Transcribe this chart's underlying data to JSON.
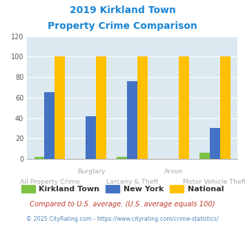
{
  "title_line1": "2019 Kirkland Town",
  "title_line2": "Property Crime Comparison",
  "categories": [
    "All Property Crime",
    "Burglary",
    "Larceny & Theft",
    "Arson",
    "Motor Vehicle Theft"
  ],
  "top_labels": [
    "",
    "Burglary",
    "",
    "Arson",
    ""
  ],
  "bot_labels": [
    "All Property Crime",
    "",
    "Larceny & Theft",
    "",
    "Motor Vehicle Theft"
  ],
  "kirkland": [
    2,
    0,
    2,
    0,
    6
  ],
  "new_york": [
    65,
    42,
    76,
    0,
    30
  ],
  "national": [
    100,
    100,
    100,
    100,
    100
  ],
  "kirkland_color": "#7dc242",
  "new_york_color": "#4472c4",
  "national_color": "#ffc000",
  "bg_color": "#dce9f0",
  "title_color": "#1c86d4",
  "legend_labels": [
    "Kirkland Town",
    "New York",
    "National"
  ],
  "ylabel_ticks": [
    0,
    20,
    40,
    60,
    80,
    100,
    120
  ],
  "ylim": [
    0,
    120
  ],
  "footnote1": "Compared to U.S. average. (U.S. average equals 100)",
  "footnote2": "© 2025 CityRating.com - https://www.cityrating.com/crime-statistics/",
  "footnote1_color": "#c0392b",
  "footnote2_color": "#5588bb",
  "bar_width": 0.25
}
